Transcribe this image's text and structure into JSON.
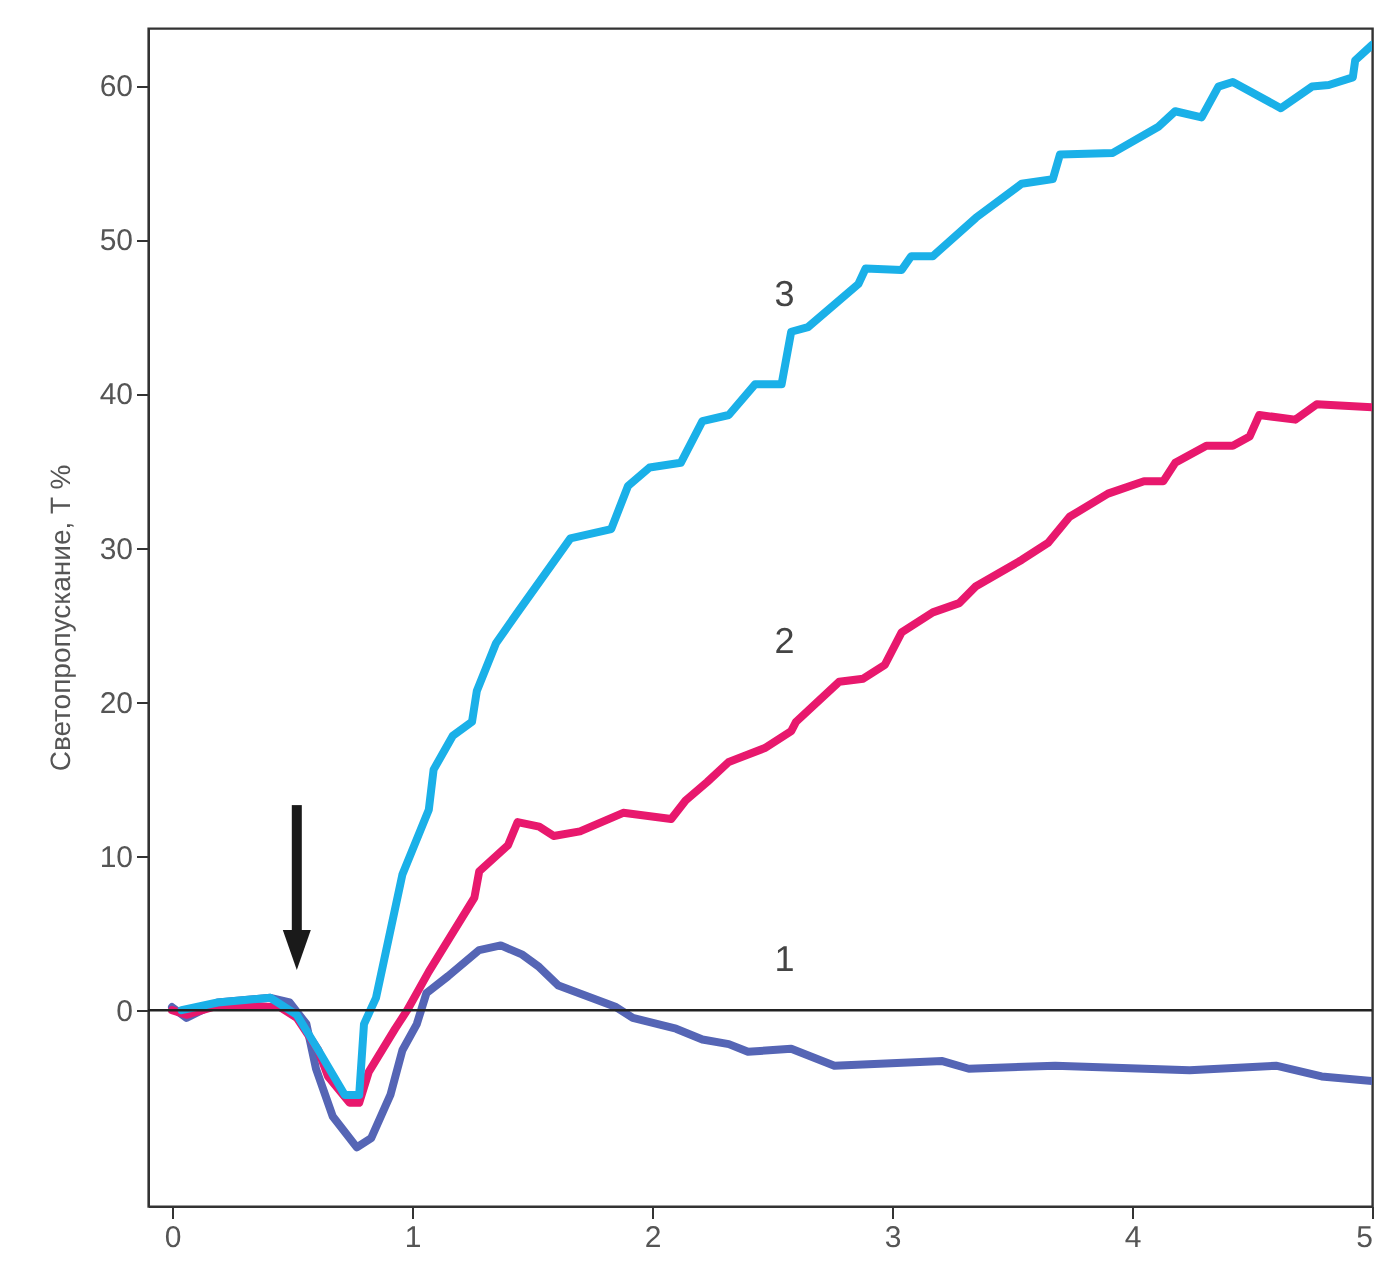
{
  "chart_data": {
    "type": "line",
    "ylabel": "Светопропускание, T %",
    "xlim": [
      -0.1,
      5
    ],
    "ylim": [
      -12.7,
      63.7
    ],
    "xticks": [
      0,
      1,
      2,
      3,
      4,
      5
    ],
    "yticks": [
      0,
      10,
      20,
      30,
      40,
      50,
      60
    ],
    "grid": false,
    "legend": false,
    "ref_lines": [
      {
        "axis": "y",
        "value": 0,
        "color": "#222222"
      }
    ],
    "series": [
      {
        "name": "1",
        "color": "#5565b5",
        "x": [
          0,
          0.06,
          0.19,
          0.41,
          0.49,
          0.56,
          0.6,
          0.67,
          0.77,
          0.83,
          0.91,
          0.96,
          1.02,
          1.06,
          1.15,
          1.28,
          1.37,
          1.46,
          1.53,
          1.61,
          1.85,
          1.92,
          2.1,
          2.21,
          2.32,
          2.4,
          2.58,
          2.76,
          3.21,
          3.32,
          3.68,
          4.24,
          4.6,
          4.79,
          5.0
        ],
        "values": [
          0.2,
          -0.5,
          0.5,
          0.8,
          0.5,
          -0.9,
          -3.8,
          -6.9,
          -8.9,
          -8.3,
          -5.5,
          -2.6,
          -0.9,
          1.1,
          2.2,
          3.9,
          4.2,
          3.6,
          2.8,
          1.6,
          0.2,
          -0.5,
          -1.2,
          -1.9,
          -2.2,
          -2.7,
          -2.5,
          -3.6,
          -3.3,
          -3.8,
          -3.6,
          -3.9,
          -3.6,
          -4.3,
          -4.6
        ]
      },
      {
        "name": "2",
        "color": "#e8186d",
        "x": [
          0,
          0.06,
          0.19,
          0.45,
          0.52,
          0.61,
          0.65,
          0.74,
          0.78,
          0.82,
          0.93,
          0.98,
          1.07,
          1.26,
          1.28,
          1.4,
          1.44,
          1.53,
          1.59,
          1.7,
          1.88,
          2.08,
          2.14,
          2.23,
          2.32,
          2.47,
          2.58,
          2.6,
          2.78,
          2.88,
          2.97,
          3.04,
          3.17,
          3.28,
          3.35,
          3.54,
          3.65,
          3.74,
          3.9,
          4.05,
          4.13,
          4.18,
          4.31,
          4.42,
          4.49,
          4.53,
          4.68,
          4.77,
          5.0
        ],
        "values": [
          0,
          -0.3,
          0.3,
          0.2,
          -0.5,
          -2.6,
          -4.3,
          -6.0,
          -6.0,
          -4.0,
          -1.2,
          0,
          2.5,
          7.3,
          9.0,
          10.7,
          12.2,
          11.9,
          11.3,
          11.6,
          12.8,
          12.4,
          13.6,
          14.8,
          16.1,
          17.0,
          18.1,
          18.7,
          21.3,
          21.5,
          22.4,
          24.5,
          25.8,
          26.4,
          27.5,
          29.2,
          30.3,
          32.0,
          33.5,
          34.3,
          34.3,
          35.5,
          36.6,
          36.6,
          37.2,
          38.6,
          38.3,
          39.3,
          39.1
        ]
      },
      {
        "name": "3",
        "color": "#1ab0e8",
        "x": [
          0.04,
          0.19,
          0.41,
          0.52,
          0.61,
          0.72,
          0.78,
          0.8,
          0.85,
          0.96,
          1.07,
          1.09,
          1.17,
          1.25,
          1.27,
          1.35,
          1.44,
          1.66,
          1.83,
          1.9,
          1.99,
          2.12,
          2.21,
          2.32,
          2.43,
          2.54,
          2.58,
          2.65,
          2.86,
          2.89,
          3.04,
          3.08,
          3.17,
          3.35,
          3.54,
          3.67,
          3.7,
          3.92,
          4.11,
          4.18,
          4.29,
          4.36,
          4.42,
          4.62,
          4.75,
          4.82,
          4.92,
          4.93,
          5.0
        ],
        "values": [
          0,
          0.5,
          0.8,
          -0.3,
          -2.6,
          -5.5,
          -5.5,
          -0.9,
          0.8,
          8.8,
          13.0,
          15.6,
          17.8,
          18.7,
          20.7,
          23.8,
          25.8,
          30.6,
          31.2,
          34.0,
          35.2,
          35.5,
          38.2,
          38.6,
          40.6,
          40.6,
          44.0,
          44.3,
          47.1,
          48.1,
          48.0,
          48.9,
          48.9,
          51.4,
          53.6,
          53.9,
          55.5,
          55.6,
          57.3,
          58.3,
          57.9,
          59.9,
          60.2,
          58.5,
          59.9,
          60.0,
          60.5,
          61.6,
          62.6
        ]
      }
    ]
  }
}
